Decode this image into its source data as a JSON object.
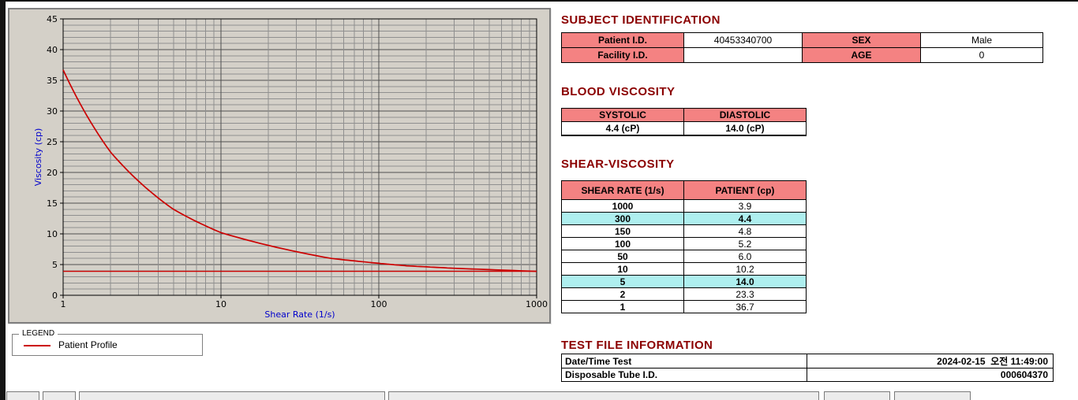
{
  "window": {
    "background": "#ffffff"
  },
  "colors": {
    "header_pink": "#f48282",
    "highlight_cyan": "#aeefef",
    "heading_red": "#8b0000",
    "accent_red": "#cc0000",
    "axis_blue": "#0000cc",
    "panel_gray": "#d4d0c8"
  },
  "chart_data": {
    "type": "line",
    "title": "",
    "xlabel": "Shear Rate (1/s)",
    "ylabel": "Viscosity (cp)",
    "x_scale": "log",
    "xlim": [
      1,
      1000
    ],
    "ylim": [
      0,
      45
    ],
    "x_ticks": [
      1,
      10,
      100,
      1000
    ],
    "y_ticks": [
      0,
      5,
      10,
      15,
      20,
      25,
      30,
      35,
      40,
      45
    ],
    "grid": true,
    "legend_position": "below-left",
    "series": [
      {
        "name": "Patient Profile",
        "color": "#cc0000",
        "x": [
          1,
          2,
          5,
          10,
          50,
          100,
          150,
          300,
          1000
        ],
        "y": [
          36.7,
          23.3,
          14.0,
          10.2,
          6.0,
          5.2,
          4.8,
          4.4,
          3.9
        ]
      }
    ],
    "baseline": {
      "y": 3.9,
      "color": "#cc0000"
    }
  },
  "legend": {
    "title": "LEGEND",
    "items": [
      {
        "label": "Patient Profile",
        "color": "#cc0000"
      }
    ]
  },
  "subject": {
    "heading": "SUBJECT IDENTIFICATION",
    "rows": [
      {
        "label1": "Patient I.D.",
        "value1": "40453340700",
        "label2": "SEX",
        "value2": "Male"
      },
      {
        "label1": "Facility I.D.",
        "value1": "",
        "label2": "AGE",
        "value2": "0"
      }
    ]
  },
  "blood_viscosity": {
    "heading": "BLOOD VISCOSITY",
    "columns": [
      "SYSTOLIC",
      "DIASTOLIC"
    ],
    "values": [
      "4.4 (cP)",
      "14.0 (cP)"
    ]
  },
  "shear_viscosity": {
    "heading": "SHEAR-VISCOSITY",
    "columns": [
      "SHEAR RATE (1/s)",
      "PATIENT (cp)"
    ],
    "rows": [
      {
        "rate": "1000",
        "value": "3.9",
        "highlight": false
      },
      {
        "rate": "300",
        "value": "4.4",
        "highlight": true
      },
      {
        "rate": "150",
        "value": "4.8",
        "highlight": false
      },
      {
        "rate": "100",
        "value": "5.2",
        "highlight": false
      },
      {
        "rate": "50",
        "value": "6.0",
        "highlight": false
      },
      {
        "rate": "10",
        "value": "10.2",
        "highlight": false
      },
      {
        "rate": "5",
        "value": "14.0",
        "highlight": true
      },
      {
        "rate": "2",
        "value": "23.3",
        "highlight": false
      },
      {
        "rate": "1",
        "value": "36.7",
        "highlight": false
      }
    ]
  },
  "test_file": {
    "heading": "TEST FILE INFORMATION",
    "rows": [
      {
        "label": "Date/Time Test",
        "value": "2024-02-15  오전 11:49:00"
      },
      {
        "label": "Disposable Tube I.D.",
        "value": "000604370"
      }
    ]
  }
}
